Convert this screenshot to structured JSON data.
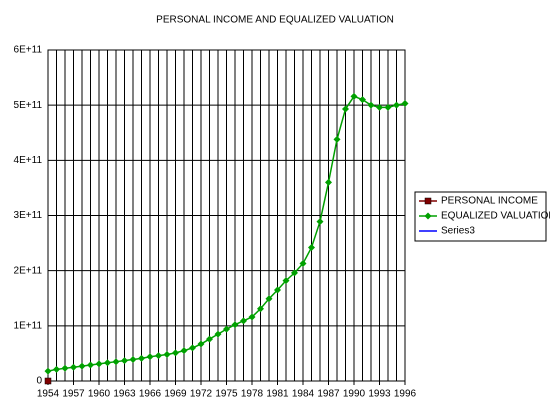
{
  "chart_data": {
    "type": "line",
    "title": "PERSONAL INCOME AND EQUALIZED VALUATION",
    "x": [
      1954,
      1955,
      1956,
      1957,
      1958,
      1959,
      1960,
      1961,
      1962,
      1963,
      1964,
      1965,
      1966,
      1967,
      1968,
      1969,
      1970,
      1971,
      1972,
      1973,
      1974,
      1975,
      1976,
      1977,
      1978,
      1979,
      1980,
      1981,
      1982,
      1983,
      1984,
      1985,
      1986,
      1987,
      1988,
      1989,
      1990,
      1991,
      1992,
      1993,
      1994,
      1995,
      1996
    ],
    "xlim": [
      1954,
      1996
    ],
    "xticks": [
      1954,
      1957,
      1960,
      1963,
      1966,
      1969,
      1972,
      1975,
      1978,
      1981,
      1984,
      1987,
      1990,
      1993,
      1996
    ],
    "ylim": [
      0,
      600000000000
    ],
    "yticks": [
      0,
      {
        "value": 100000000000,
        "label": "1E+11"
      },
      {
        "value": 200000000000,
        "label": "2E+11"
      },
      {
        "value": 300000000000,
        "label": "3E+11"
      },
      {
        "value": 400000000000,
        "label": "4E+11"
      },
      {
        "value": 500000000000,
        "label": "5E+11"
      },
      {
        "value": 600000000000,
        "label": "6E+11"
      }
    ],
    "grid": true,
    "legend": "right",
    "series": [
      {
        "name": "PERSONAL INCOME",
        "color": "#800000",
        "marker": "square",
        "values": [
          0,
          null,
          null,
          null,
          null,
          null,
          null,
          null,
          null,
          null,
          null,
          null,
          null,
          null,
          null,
          null,
          null,
          null,
          null,
          null,
          null,
          null,
          null,
          null,
          null,
          null,
          null,
          null,
          null,
          null,
          null,
          null,
          null,
          null,
          null,
          null,
          null,
          null,
          null,
          null,
          null,
          null,
          null
        ]
      },
      {
        "name": "EQUALIZED VALUATION",
        "color": "#00a000",
        "marker": "diamond",
        "values": [
          18000000000,
          21000000000,
          23000000000,
          25000000000,
          27000000000,
          29000000000,
          31000000000,
          33000000000,
          35000000000,
          37000000000,
          39000000000,
          41000000000,
          44000000000,
          46000000000,
          48000000000,
          51000000000,
          55000000000,
          60000000000,
          67000000000,
          76000000000,
          85000000000,
          94000000000,
          102000000000,
          109000000000,
          116000000000,
          131000000000,
          149000000000,
          165000000000,
          182000000000,
          196000000000,
          213000000000,
          242000000000,
          289000000000,
          360000000000,
          438000000000,
          493000000000,
          516000000000,
          510000000000,
          500000000000,
          496000000000,
          496000000000,
          500000000000,
          503000000000
        ]
      },
      {
        "name": "Series3",
        "color": "#0000ff",
        "marker": "none",
        "values": [
          null,
          null,
          null,
          null,
          null,
          null,
          null,
          null,
          null,
          null,
          null,
          null,
          null,
          null,
          null,
          null,
          null,
          null,
          null,
          null,
          null,
          null,
          null,
          null,
          null,
          null,
          null,
          null,
          null,
          null,
          null,
          null,
          null,
          null,
          null,
          null,
          null,
          null,
          null,
          null,
          null,
          null,
          null
        ]
      }
    ]
  }
}
